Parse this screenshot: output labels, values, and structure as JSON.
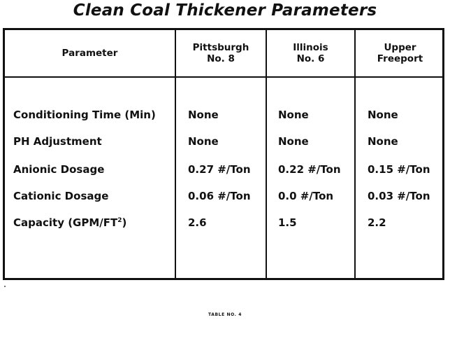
{
  "title": "Clean Coal Thickener Parameters",
  "headers": {
    "parameter": "Parameter",
    "col1": [
      "Pittsburgh",
      "No. 8"
    ],
    "col2": [
      "Illinois",
      "No. 6"
    ],
    "col3": [
      "Upper",
      "Freeport"
    ]
  },
  "rows": [
    {
      "label": "Conditioning Time (Min)",
      "values": [
        "None",
        "None",
        "None"
      ]
    },
    {
      "label": "PH Adjustment",
      "values": [
        "None",
        "None",
        "None"
      ]
    },
    {
      "label": "Anionic Dosage",
      "values": [
        "0.27 #/Ton",
        "0.22 #/Ton",
        "0.15 #/Ton"
      ]
    },
    {
      "label": "Cationic Dosage",
      "values": [
        "0.06 #/Ton",
        "0.0 #/Ton",
        "0.03 #/Ton"
      ]
    },
    {
      "label": "Capacity (GPM/FT",
      "label_sup": "2",
      "label_suffix": ")",
      "values": [
        "2.6",
        "1.5",
        "2.2"
      ]
    }
  ],
  "caption": "TABLE NO. 4"
}
